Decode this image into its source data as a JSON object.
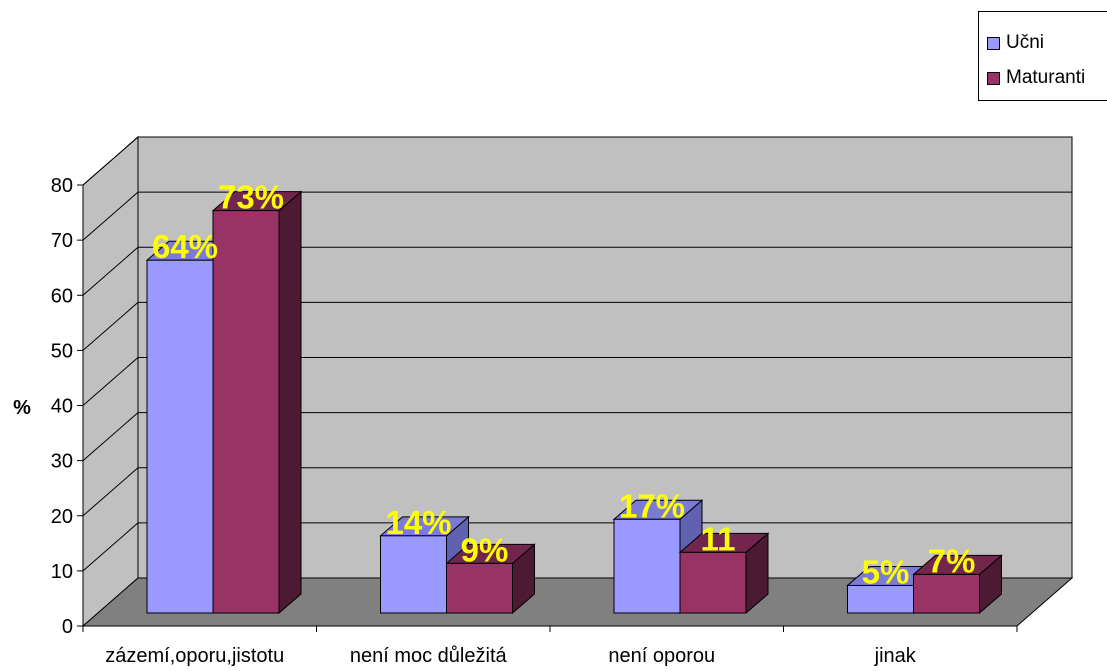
{
  "chart_data": {
    "type": "bar",
    "title": "",
    "xlabel": "",
    "ylabel": "%",
    "ylim": [
      0,
      80
    ],
    "yticks": [
      0,
      10,
      20,
      30,
      40,
      50,
      60,
      70,
      80
    ],
    "grid": true,
    "three_d": true,
    "legend_position": "top-right",
    "categories": [
      "zázemí,oporu,jistotu",
      "není moc důležitá",
      "není oporou",
      "jinak"
    ],
    "series": [
      {
        "name": "Učni",
        "color": "#9999ff",
        "side_color": "#6161b2",
        "top_color": "#7b7bd6",
        "values": [
          64,
          14,
          17,
          5
        ],
        "labels": [
          "64%",
          "14%",
          "17%",
          "5%"
        ]
      },
      {
        "name": "Maturanti",
        "color": "#993366",
        "side_color": "#4d1a33",
        "top_color": "#73264d",
        "values": [
          73,
          9,
          11,
          7
        ],
        "labels": [
          "73%",
          "9%",
          "11",
          "7%"
        ]
      }
    ],
    "wall_color": "#c0c0c0",
    "floor_color": "#808080",
    "label_color": "#ffff00"
  }
}
